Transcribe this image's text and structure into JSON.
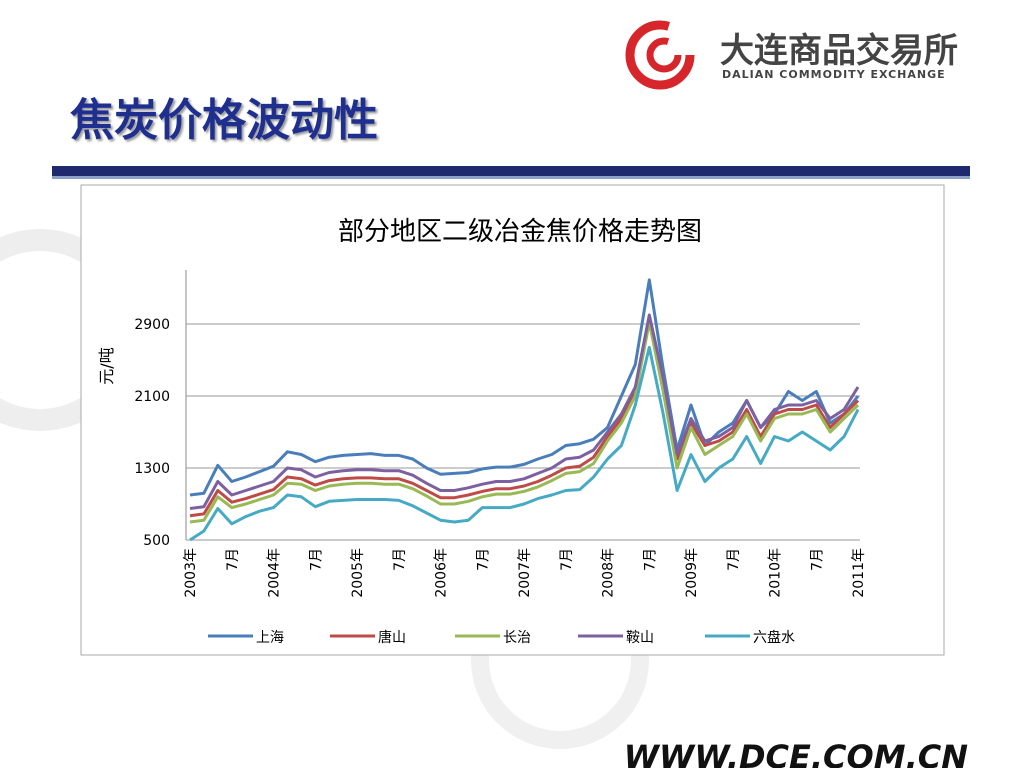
{
  "header": {
    "title": "焦炭价格波动性",
    "logo_cn": "大连商品交易所",
    "logo_en": "DALIAN COMMODITY EXCHANGE"
  },
  "footer": {
    "url": "WWW.DCE.COM.CN"
  },
  "chart_data": {
    "type": "line",
    "title": "部分地区二级冶金焦价格走势图",
    "y_label": "元/吨",
    "categories": [
      "2003年",
      null,
      null,
      "7月",
      null,
      null,
      "2004年",
      null,
      null,
      "7月",
      null,
      null,
      "2005年",
      null,
      null,
      "7月",
      null,
      null,
      "2006年",
      null,
      null,
      "7月",
      null,
      null,
      "2007年",
      null,
      null,
      "7月",
      null,
      null,
      "2008年",
      null,
      null,
      "7月",
      null,
      null,
      "2009年",
      null,
      null,
      "7月",
      null,
      null,
      "2010年",
      null,
      null,
      "7月",
      null,
      null,
      "2011年"
    ],
    "ylim": [
      500,
      3500
    ],
    "yticks": [
      500,
      1300,
      2100,
      2900
    ],
    "grid": true,
    "legend": "bottom",
    "series": [
      {
        "name": "上海",
        "color": "#4a7ebb",
        "values": [
          1000,
          1020,
          1330,
          1150,
          1200,
          1260,
          1320,
          1480,
          1450,
          1370,
          1420,
          1440,
          1450,
          1460,
          1440,
          1440,
          1400,
          1300,
          1230,
          1240,
          1250,
          1290,
          1310,
          1310,
          1340,
          1400,
          1450,
          1550,
          1570,
          1620,
          1750,
          2100,
          2450,
          3390,
          2400,
          1500,
          2000,
          1550,
          1700,
          1800,
          2050,
          1750,
          1900,
          2150,
          2050,
          2150,
          1800,
          1900,
          2100
        ]
      },
      {
        "name": "唐山",
        "color": "#be4b48",
        "values": [
          770,
          790,
          1050,
          920,
          960,
          1010,
          1060,
          1200,
          1180,
          1110,
          1160,
          1180,
          1190,
          1190,
          1180,
          1180,
          1130,
          1050,
          970,
          970,
          1000,
          1040,
          1070,
          1070,
          1100,
          1150,
          1220,
          1300,
          1320,
          1420,
          1650,
          1850,
          2150,
          2980,
          2250,
          1400,
          1800,
          1550,
          1600,
          1700,
          1950,
          1650,
          1900,
          1950,
          1950,
          2000,
          1750,
          1900,
          2050
        ]
      },
      {
        "name": "长治",
        "color": "#98b954",
        "values": [
          700,
          720,
          980,
          860,
          900,
          950,
          1000,
          1130,
          1120,
          1050,
          1100,
          1120,
          1130,
          1130,
          1120,
          1120,
          1070,
          990,
          900,
          900,
          930,
          980,
          1010,
          1010,
          1040,
          1090,
          1160,
          1240,
          1260,
          1350,
          1600,
          1800,
          2100,
          2920,
          2150,
          1300,
          1750,
          1450,
          1550,
          1650,
          1900,
          1600,
          1850,
          1900,
          1900,
          1950,
          1700,
          1850,
          2000
        ]
      },
      {
        "name": "鞍山",
        "color": "#7d60a0",
        "values": [
          850,
          870,
          1150,
          1000,
          1050,
          1100,
          1150,
          1300,
          1280,
          1200,
          1250,
          1270,
          1280,
          1280,
          1270,
          1270,
          1220,
          1130,
          1050,
          1050,
          1080,
          1120,
          1150,
          1150,
          1180,
          1240,
          1300,
          1400,
          1420,
          1500,
          1700,
          1900,
          2200,
          3000,
          2300,
          1450,
          1850,
          1600,
          1650,
          1750,
          2050,
          1750,
          1950,
          2000,
          2000,
          2050,
          1850,
          1950,
          2200
        ]
      },
      {
        "name": "六盘水",
        "color": "#46aac5",
        "values": [
          500,
          600,
          850,
          680,
          760,
          820,
          860,
          1000,
          980,
          870,
          930,
          940,
          950,
          950,
          950,
          940,
          880,
          800,
          720,
          700,
          720,
          860,
          860,
          860,
          900,
          960,
          1000,
          1050,
          1060,
          1200,
          1400,
          1550,
          2000,
          2640,
          1900,
          1050,
          1450,
          1150,
          1300,
          1400,
          1650,
          1350,
          1650,
          1600,
          1700,
          1600,
          1500,
          1650,
          1950
        ]
      }
    ]
  }
}
